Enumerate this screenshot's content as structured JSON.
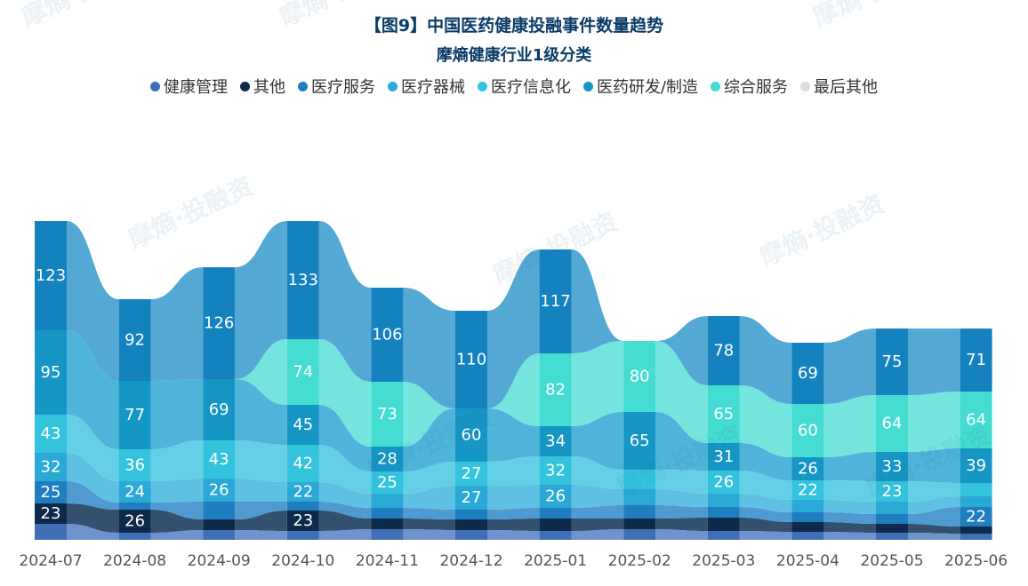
{
  "chart_data": {
    "type": "stacked-bar-flow",
    "title": "【图9】中国医药健康投融事件数量趋势",
    "subtitle": "摩熵健康行业1级分类",
    "legend_position": "top",
    "categories": [
      "2024-07",
      "2024-08",
      "2024-09",
      "2024-10",
      "2024-11",
      "2024-12",
      "2025-01",
      "2025-02",
      "2025-03",
      "2025-04",
      "2025-05",
      "2025-06"
    ],
    "series": [
      {
        "name": "健康管理",
        "color": "#3f6fb5",
        "values": [
          18,
          8,
          11,
          10,
          12,
          11,
          10,
          12,
          10,
          9,
          8,
          7
        ]
      },
      {
        "name": "其他",
        "color": "#0d2a4a",
        "values": [
          23,
          26,
          12,
          23,
          12,
          12,
          14,
          12,
          15,
          11,
          10,
          8
        ]
      },
      {
        "name": "医疗服务",
        "color": "#1f7ec0",
        "values": [
          25,
          8,
          20,
          10,
          12,
          11,
          12,
          15,
          12,
          11,
          11,
          22
        ]
      },
      {
        "name": "医疗器械",
        "color": "#2aa9d6",
        "values": [
          32,
          24,
          26,
          22,
          16,
          27,
          26,
          18,
          15,
          14,
          14,
          12
        ]
      },
      {
        "name": "医疗信息化",
        "color": "#34c3dd",
        "values": [
          43,
          36,
          43,
          42,
          25,
          27,
          32,
          22,
          26,
          22,
          23,
          15
        ]
      },
      {
        "name": "医药研发/制造",
        "color": "#1596c4",
        "values": [
          95,
          77,
          69,
          45,
          28,
          60,
          34,
          65,
          31,
          26,
          33,
          39
        ]
      },
      {
        "name": "综合服务",
        "color": "#45dcd2",
        "values": [
          0,
          0,
          0,
          74,
          73,
          0,
          82,
          80,
          65,
          60,
          64,
          64
        ]
      },
      {
        "name": "最后其他",
        "color": "#dcdcdc",
        "values": [
          123,
          92,
          126,
          133,
          106,
          110,
          117,
          0,
          78,
          69,
          75,
          71
        ]
      }
    ],
    "labels": [
      {
        "col": 0,
        "band": 7,
        "text": "123"
      },
      {
        "col": 0,
        "band": 5,
        "text": "95"
      },
      {
        "col": 0,
        "band": 4,
        "text": "43"
      },
      {
        "col": 0,
        "band": 3,
        "text": "32"
      },
      {
        "col": 0,
        "band": 2,
        "text": "25"
      },
      {
        "col": 0,
        "band": 1,
        "text": "23"
      },
      {
        "col": 1,
        "band": 7,
        "text": "92"
      },
      {
        "col": 1,
        "band": 5,
        "text": "77"
      },
      {
        "col": 1,
        "band": 4,
        "text": "36"
      },
      {
        "col": 1,
        "band": 1,
        "text": "26"
      },
      {
        "col": 1,
        "band": 3,
        "text": "24"
      },
      {
        "col": 2,
        "band": 7,
        "text": "126"
      },
      {
        "col": 2,
        "band": 5,
        "text": "69"
      },
      {
        "col": 2,
        "band": 4,
        "text": "43"
      },
      {
        "col": 2,
        "band": 3,
        "text": "26"
      },
      {
        "col": 3,
        "band": 7,
        "text": "133"
      },
      {
        "col": 3,
        "band": 6,
        "text": "74"
      },
      {
        "col": 3,
        "band": 5,
        "text": "45"
      },
      {
        "col": 3,
        "band": 4,
        "text": "42"
      },
      {
        "col": 3,
        "band": 1,
        "text": "23"
      },
      {
        "col": 3,
        "band": 3,
        "text": "22"
      },
      {
        "col": 4,
        "band": 7,
        "text": "106"
      },
      {
        "col": 4,
        "band": 6,
        "text": "73"
      },
      {
        "col": 4,
        "band": 5,
        "text": "28"
      },
      {
        "col": 4,
        "band": 4,
        "text": "25"
      },
      {
        "col": 5,
        "band": 7,
        "text": "110"
      },
      {
        "col": 5,
        "band": 5,
        "text": "60"
      },
      {
        "col": 5,
        "band": 4,
        "text": "27"
      },
      {
        "col": 5,
        "band": 3,
        "text": "27"
      },
      {
        "col": 6,
        "band": 7,
        "text": "117"
      },
      {
        "col": 6,
        "band": 6,
        "text": "82"
      },
      {
        "col": 6,
        "band": 5,
        "text": "34"
      },
      {
        "col": 6,
        "band": 4,
        "text": "32"
      },
      {
        "col": 6,
        "band": 3,
        "text": "26"
      },
      {
        "col": 7,
        "band": 6,
        "text": "80"
      },
      {
        "col": 7,
        "band": 5,
        "text": "65"
      },
      {
        "col": 8,
        "band": 7,
        "text": "78"
      },
      {
        "col": 8,
        "band": 6,
        "text": "65"
      },
      {
        "col": 8,
        "band": 5,
        "text": "31"
      },
      {
        "col": 8,
        "band": 4,
        "text": "26"
      },
      {
        "col": 9,
        "band": 7,
        "text": "69"
      },
      {
        "col": 9,
        "band": 6,
        "text": "60"
      },
      {
        "col": 9,
        "band": 5,
        "text": "26"
      },
      {
        "col": 9,
        "band": 4,
        "text": "22"
      },
      {
        "col": 10,
        "band": 7,
        "text": "75"
      },
      {
        "col": 10,
        "band": 6,
        "text": "64"
      },
      {
        "col": 10,
        "band": 5,
        "text": "33"
      },
      {
        "col": 10,
        "band": 4,
        "text": "23"
      },
      {
        "col": 11,
        "band": 7,
        "text": "71"
      },
      {
        "col": 11,
        "band": 6,
        "text": "64"
      },
      {
        "col": 11,
        "band": 5,
        "text": "39"
      },
      {
        "col": 11,
        "band": 2,
        "text": "22"
      }
    ]
  },
  "watermark": "摩熵·投融资"
}
